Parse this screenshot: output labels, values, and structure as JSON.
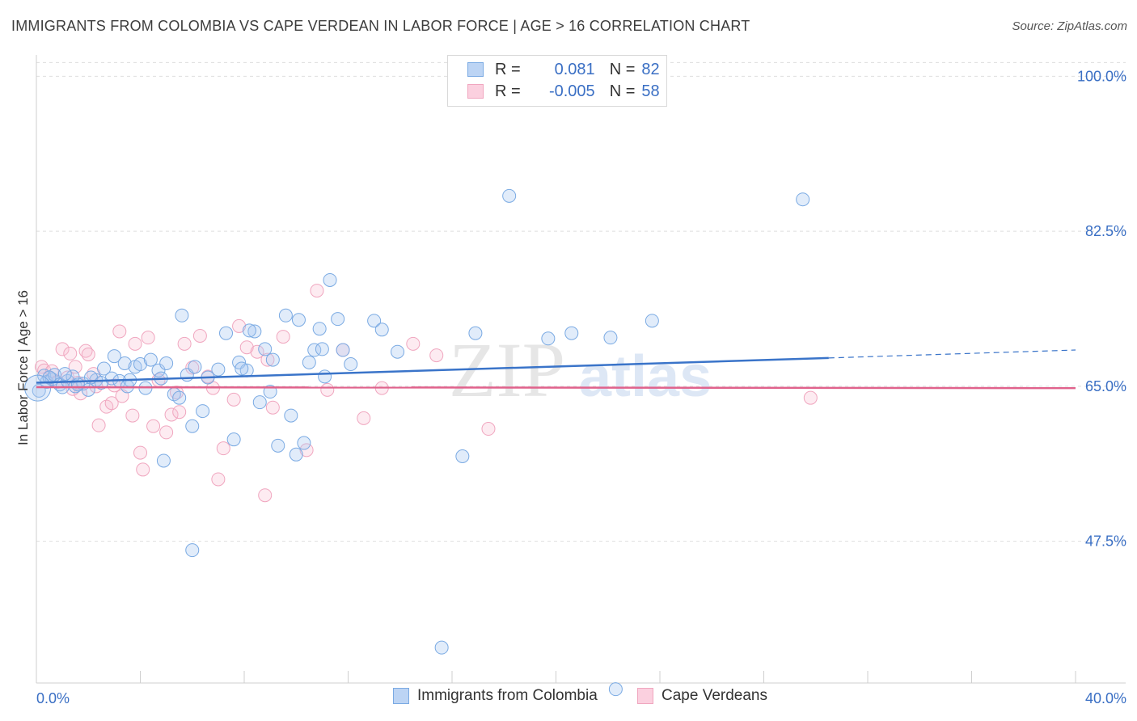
{
  "header": {
    "title": "IMMIGRANTS FROM COLOMBIA VS CAPE VERDEAN IN LABOR FORCE | AGE > 16 CORRELATION CHART",
    "source": "Source: ZipAtlas.com"
  },
  "legend": {
    "series1": {
      "r_label": "R =",
      "r_value": "0.081",
      "n_label": "N =",
      "n_value": "82"
    },
    "series2": {
      "r_label": "R =",
      "r_value": "-0.005",
      "n_label": "N =",
      "n_value": "58"
    }
  },
  "watermark": {
    "zip": "ZIP",
    "atlas": "atlas"
  },
  "chart_data": {
    "type": "scatter",
    "ylabel": "In Labor Force | Age > 16",
    "xlim": [
      0,
      40
    ],
    "ylim": [
      30,
      103
    ],
    "x_tick_labels": [
      "0.0%",
      "40.0%"
    ],
    "y_ticks": [
      100,
      82.5,
      65,
      47.5
    ],
    "y_tick_labels": [
      "100.0%",
      "82.5%",
      "65.0%",
      "47.5%"
    ],
    "grid": "horizontal dashed",
    "colors": {
      "series1": "#7aaae3",
      "series1_line": "#3a74c9",
      "series2": "#f0a6bf",
      "series2_line": "#e0628c",
      "axis_label": "#3a6fc4"
    },
    "series": [
      {
        "name": "Immigrants from Colombia",
        "trend": {
          "x": [
            0,
            30.5,
            40
          ],
          "y": [
            65.4,
            68.2,
            69.1
          ],
          "dashed_from": 30.5
        },
        "points": [
          [
            0.1,
            64.5
          ],
          [
            0.3,
            66.2
          ],
          [
            0.4,
            65.5
          ],
          [
            0.6,
            65.8
          ],
          [
            0.7,
            66.3
          ],
          [
            0.9,
            65.2
          ],
          [
            1.0,
            64.9
          ],
          [
            1.2,
            65.6
          ],
          [
            1.4,
            66.1
          ],
          [
            1.5,
            65.0
          ],
          [
            1.8,
            65.3
          ],
          [
            2.0,
            64.6
          ],
          [
            2.3,
            65.7
          ],
          [
            2.6,
            67.0
          ],
          [
            2.9,
            65.9
          ],
          [
            3.0,
            68.4
          ],
          [
            3.2,
            65.6
          ],
          [
            3.4,
            67.6
          ],
          [
            3.5,
            65.0
          ],
          [
            3.8,
            67.2
          ],
          [
            4.0,
            67.5
          ],
          [
            4.2,
            64.8
          ],
          [
            4.4,
            68.0
          ],
          [
            4.7,
            66.8
          ],
          [
            4.8,
            65.9
          ],
          [
            5.0,
            67.6
          ],
          [
            5.3,
            64.1
          ],
          [
            5.6,
            73.0
          ],
          [
            5.8,
            66.3
          ],
          [
            6.0,
            60.5
          ],
          [
            6.1,
            67.2
          ],
          [
            6.4,
            62.2
          ],
          [
            6.6,
            66.0
          ],
          [
            7.0,
            66.9
          ],
          [
            7.3,
            71.0
          ],
          [
            7.6,
            59.0
          ],
          [
            7.8,
            67.7
          ],
          [
            8.1,
            66.8
          ],
          [
            8.4,
            71.2
          ],
          [
            8.6,
            63.2
          ],
          [
            8.8,
            69.2
          ],
          [
            9.0,
            64.4
          ],
          [
            9.1,
            68.0
          ],
          [
            9.3,
            58.3
          ],
          [
            9.6,
            73.0
          ],
          [
            9.8,
            61.7
          ],
          [
            10.0,
            57.3
          ],
          [
            10.1,
            72.5
          ],
          [
            10.3,
            58.6
          ],
          [
            10.5,
            67.7
          ],
          [
            10.7,
            69.1
          ],
          [
            11.0,
            69.2
          ],
          [
            11.1,
            66.1
          ],
          [
            11.3,
            77.0
          ],
          [
            11.6,
            72.6
          ],
          [
            11.8,
            69.1
          ],
          [
            12.1,
            67.5
          ],
          [
            13.0,
            72.4
          ],
          [
            13.3,
            71.4
          ],
          [
            13.9,
            68.9
          ],
          [
            15.6,
            35.5
          ],
          [
            16.4,
            57.1
          ],
          [
            16.9,
            71.0
          ],
          [
            18.2,
            86.5
          ],
          [
            19.7,
            70.4
          ],
          [
            22.1,
            70.5
          ],
          [
            23.7,
            72.4
          ],
          [
            29.5,
            86.1
          ],
          [
            20.6,
            71.0
          ],
          [
            6.0,
            46.5
          ],
          [
            22.3,
            30.8
          ],
          [
            1.6,
            65.2
          ],
          [
            2.1,
            66.0
          ],
          [
            3.6,
            65.7
          ],
          [
            5.5,
            63.7
          ],
          [
            7.9,
            67.0
          ],
          [
            1.1,
            66.4
          ],
          [
            2.5,
            65.4
          ],
          [
            4.9,
            56.6
          ],
          [
            0.5,
            66.0
          ],
          [
            8.2,
            71.3
          ],
          [
            10.9,
            71.5
          ]
        ]
      },
      {
        "name": "Cape Verdeans",
        "trend": {
          "x": [
            0,
            40
          ],
          "y": [
            64.9,
            64.8
          ]
        },
        "points": [
          [
            0.2,
            67.2
          ],
          [
            0.3,
            66.8
          ],
          [
            0.5,
            66.0
          ],
          [
            0.8,
            65.5
          ],
          [
            1.0,
            69.2
          ],
          [
            1.2,
            66.0
          ],
          [
            1.4,
            64.7
          ],
          [
            1.5,
            67.2
          ],
          [
            1.7,
            64.2
          ],
          [
            1.9,
            69.0
          ],
          [
            2.0,
            68.6
          ],
          [
            2.3,
            65.0
          ],
          [
            2.4,
            60.6
          ],
          [
            2.7,
            62.7
          ],
          [
            2.9,
            63.1
          ],
          [
            3.2,
            71.2
          ],
          [
            3.3,
            63.9
          ],
          [
            3.7,
            61.7
          ],
          [
            3.8,
            69.8
          ],
          [
            4.0,
            57.5
          ],
          [
            4.1,
            55.6
          ],
          [
            4.3,
            70.5
          ],
          [
            4.5,
            60.5
          ],
          [
            4.7,
            65.7
          ],
          [
            5.0,
            59.8
          ],
          [
            5.2,
            61.8
          ],
          [
            5.5,
            62.1
          ],
          [
            5.7,
            69.8
          ],
          [
            6.0,
            67.1
          ],
          [
            6.3,
            70.7
          ],
          [
            6.8,
            64.8
          ],
          [
            7.0,
            54.5
          ],
          [
            7.2,
            58.0
          ],
          [
            7.6,
            63.5
          ],
          [
            7.8,
            71.8
          ],
          [
            8.1,
            69.4
          ],
          [
            8.5,
            68.9
          ],
          [
            8.8,
            52.7
          ],
          [
            9.1,
            62.6
          ],
          [
            9.5,
            70.6
          ],
          [
            10.4,
            57.8
          ],
          [
            10.8,
            75.8
          ],
          [
            11.2,
            64.6
          ],
          [
            11.8,
            69.1
          ],
          [
            12.6,
            61.4
          ],
          [
            13.3,
            64.8
          ],
          [
            14.5,
            69.8
          ],
          [
            15.4,
            68.5
          ],
          [
            17.4,
            60.2
          ],
          [
            29.8,
            63.7
          ],
          [
            1.6,
            65.4
          ],
          [
            3.0,
            65.1
          ],
          [
            5.4,
            64.3
          ],
          [
            0.6,
            66.7
          ],
          [
            2.2,
            66.4
          ],
          [
            6.6,
            66.1
          ],
          [
            8.9,
            68.0
          ],
          [
            1.3,
            68.7
          ]
        ]
      }
    ]
  },
  "bottom_legend": {
    "series1_label": "Immigrants from Colombia",
    "series2_label": "Cape Verdeans"
  }
}
